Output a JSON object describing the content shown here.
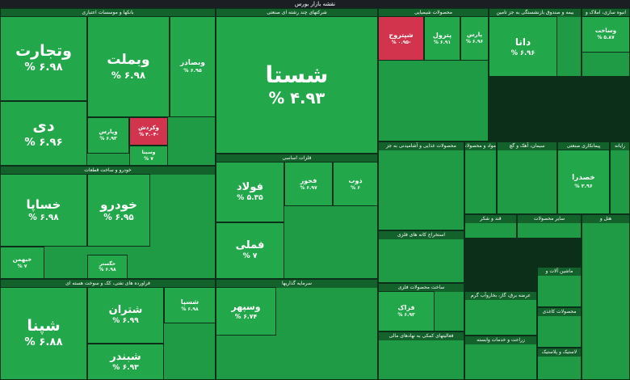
{
  "header": {
    "title": "نقشه بازار بورس"
  },
  "sectors": [
    {
      "name": "بانکها و موسسات اعتباری",
      "tiles": [
        {
          "symbol": "وتجارت",
          "change": "۶.۹۸ %"
        },
        {
          "symbol": "دی",
          "change": "۶.۹۶ %"
        },
        {
          "symbol": "وبملت",
          "change": "۶.۹۸ %"
        },
        {
          "symbol": "وبصادر",
          "change": "۶.۹۵ %"
        },
        {
          "symbol": "وپارس",
          "change": "۶.۹۳ %"
        },
        {
          "symbol": "وکردش",
          "change": "-۴.۰۴ %"
        },
        {
          "symbol": "وسینا",
          "change": "۷ %"
        }
      ]
    },
    {
      "name": "خودرو و ساخت قطعات",
      "tiles": [
        {
          "symbol": "خساپا",
          "change": "۶.۹۸ %"
        },
        {
          "symbol": "خبهمن",
          "change": "۷ %"
        },
        {
          "symbol": "خودرو",
          "change": "۶.۹۵ %"
        },
        {
          "symbol": "خگستر",
          "change": "۶.۹۸ %"
        }
      ]
    },
    {
      "name": "فراورده های نفتی، کک و سوخت هسته ای",
      "tiles": [
        {
          "symbol": "شپنا",
          "change": "۶.۸۸ %"
        },
        {
          "symbol": "شتران",
          "change": "۶.۹۹ %"
        },
        {
          "symbol": "شبندر",
          "change": "۶.۹۳ %"
        },
        {
          "symbol": "شسپا",
          "change": "۶.۹۸ %"
        }
      ]
    },
    {
      "name": "شرکتهای چند رشته ای صنعتی",
      "tiles": [
        {
          "symbol": "شستا",
          "change": "۴.۹۳ %"
        }
      ]
    },
    {
      "name": "فلزات اساسی",
      "tiles": [
        {
          "symbol": "فولاد",
          "change": "۵.۳۵ %"
        },
        {
          "symbol": "فملی",
          "change": "۷ %"
        },
        {
          "symbol": "فخوز",
          "change": "۶.۹۷ %"
        },
        {
          "symbol": "ذوب",
          "change": "۶ %"
        }
      ]
    },
    {
      "name": "سرمایه گذاریها",
      "tiles": [
        {
          "symbol": "وسپهر",
          "change": "۶.۷۴ %"
        }
      ]
    },
    {
      "name": "محصولات شیمیایی",
      "tiles": [
        {
          "symbol": "شپتروح",
          "change": "-۰.۹۵ %"
        },
        {
          "symbol": "پترول",
          "change": "۶.۹۱ %"
        },
        {
          "symbol": "پارس",
          "change": "۶.۹۶ %"
        }
      ]
    },
    {
      "name": "بیمه و صندوق بازنشستگی به جز تامین",
      "tiles": [
        {
          "symbol": "دانا",
          "change": "۶.۹۶ %"
        }
      ]
    },
    {
      "name": "انبوه سازی، املاک و",
      "tiles": [
        {
          "symbol": "وساخت",
          "change": "۵.۸۷ %"
        }
      ]
    },
    {
      "name": "محصولات غذایی و آشامیدنی به جز",
      "tiles": []
    },
    {
      "name": "مواد و محصولات",
      "tiles": []
    },
    {
      "name": "سیمان، آهک و گچ",
      "tiles": []
    },
    {
      "name": "پیمانکاری صنعتی",
      "tiles": [
        {
          "symbol": "خصدرا",
          "change": "۲.۹۶ %"
        }
      ]
    },
    {
      "name": "استخراج کانه های فلزی",
      "tiles": []
    },
    {
      "name": "ساخت محصولات فلزی",
      "tiles": [
        {
          "symbol": "فزاک",
          "change": "۶.۹۳ %"
        }
      ]
    },
    {
      "name": "فعالیتهای کمکی به نهادهای مالی",
      "tiles": []
    },
    {
      "name": "قند و شکر",
      "tiles": []
    },
    {
      "name": "سایر محصولات",
      "tiles": []
    },
    {
      "name": "عرضه برق، گاز، بخاروآب گرم",
      "tiles": []
    },
    {
      "name": "زراعت و خدمات وابسته",
      "tiles": []
    },
    {
      "name": "ماشین آلات و",
      "tiles": []
    },
    {
      "name": "محصولات کاغذی",
      "tiles": []
    },
    {
      "name": "لاستیک و پلاستیک",
      "tiles": []
    },
    {
      "name": "هتل و",
      "tiles": []
    },
    {
      "name": "رایانه",
      "tiles": []
    }
  ]
}
